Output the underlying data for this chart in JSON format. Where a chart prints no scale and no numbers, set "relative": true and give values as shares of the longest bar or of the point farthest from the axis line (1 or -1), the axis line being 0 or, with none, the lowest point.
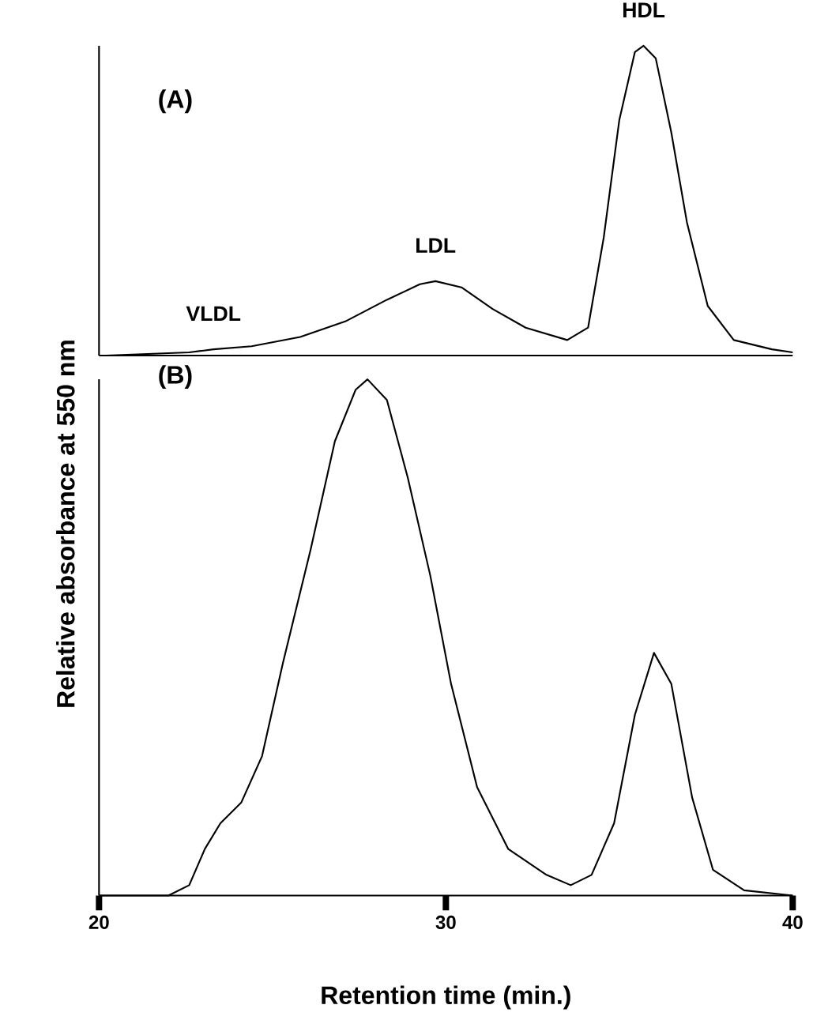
{
  "chart_data": [
    {
      "type": "line",
      "title": "(A)",
      "relative": true,
      "xlim": [
        20,
        40
      ],
      "xticks": [
        20,
        30,
        40
      ],
      "tick_labels": false,
      "series": [
        {
          "color": "#000000",
          "x": [
            20.2,
            22.6,
            23.3,
            24.4,
            25.8,
            27.1,
            28.3,
            29.25,
            29.7,
            30.45,
            31.35,
            32.3,
            33.5,
            34.1,
            34.55,
            35.0,
            35.45,
            35.7,
            36.05,
            36.5,
            36.95,
            37.55,
            38.3,
            39.4,
            40
          ],
          "values": [
            0,
            0.01,
            0.02,
            0.03,
            0.06,
            0.11,
            0.18,
            0.23,
            0.24,
            0.22,
            0.15,
            0.09,
            0.05,
            0.09,
            0.38,
            0.76,
            0.98,
            1.0,
            0.96,
            0.72,
            0.43,
            0.16,
            0.05,
            0.02,
            0.01
          ]
        }
      ],
      "annotations": [
        {
          "text": "VLDL",
          "x": 23.3,
          "y": 0.02
        },
        {
          "text": "LDL",
          "x": 29.7,
          "y": 0.24
        },
        {
          "text": "HDL",
          "x": 35.7,
          "y": 1.0
        }
      ]
    },
    {
      "type": "line",
      "title": "(B)",
      "relative": true,
      "xlabel": "Retention time (min.)",
      "ylabel": "Relative absorbance at 550 nm",
      "xlim": [
        20,
        40
      ],
      "xticks": [
        20,
        30,
        40
      ],
      "tick_labels": "x",
      "series": [
        {
          "color": "#000000",
          "x": [
            20,
            22.0,
            22.6,
            23.05,
            23.5,
            24.1,
            24.7,
            25.3,
            26.1,
            26.8,
            27.4,
            27.74,
            28.3,
            28.9,
            29.55,
            30.15,
            30.9,
            31.8,
            32.9,
            33.6,
            34.2,
            34.85,
            35.45,
            36.0,
            36.5,
            37.1,
            37.7,
            38.6,
            40
          ],
          "values": [
            0,
            0,
            0.02,
            0.09,
            0.14,
            0.18,
            0.27,
            0.45,
            0.67,
            0.88,
            0.98,
            1.0,
            0.96,
            0.81,
            0.62,
            0.41,
            0.21,
            0.09,
            0.04,
            0.02,
            0.04,
            0.14,
            0.35,
            0.47,
            0.41,
            0.19,
            0.05,
            0.01,
            0
          ]
        }
      ]
    }
  ]
}
